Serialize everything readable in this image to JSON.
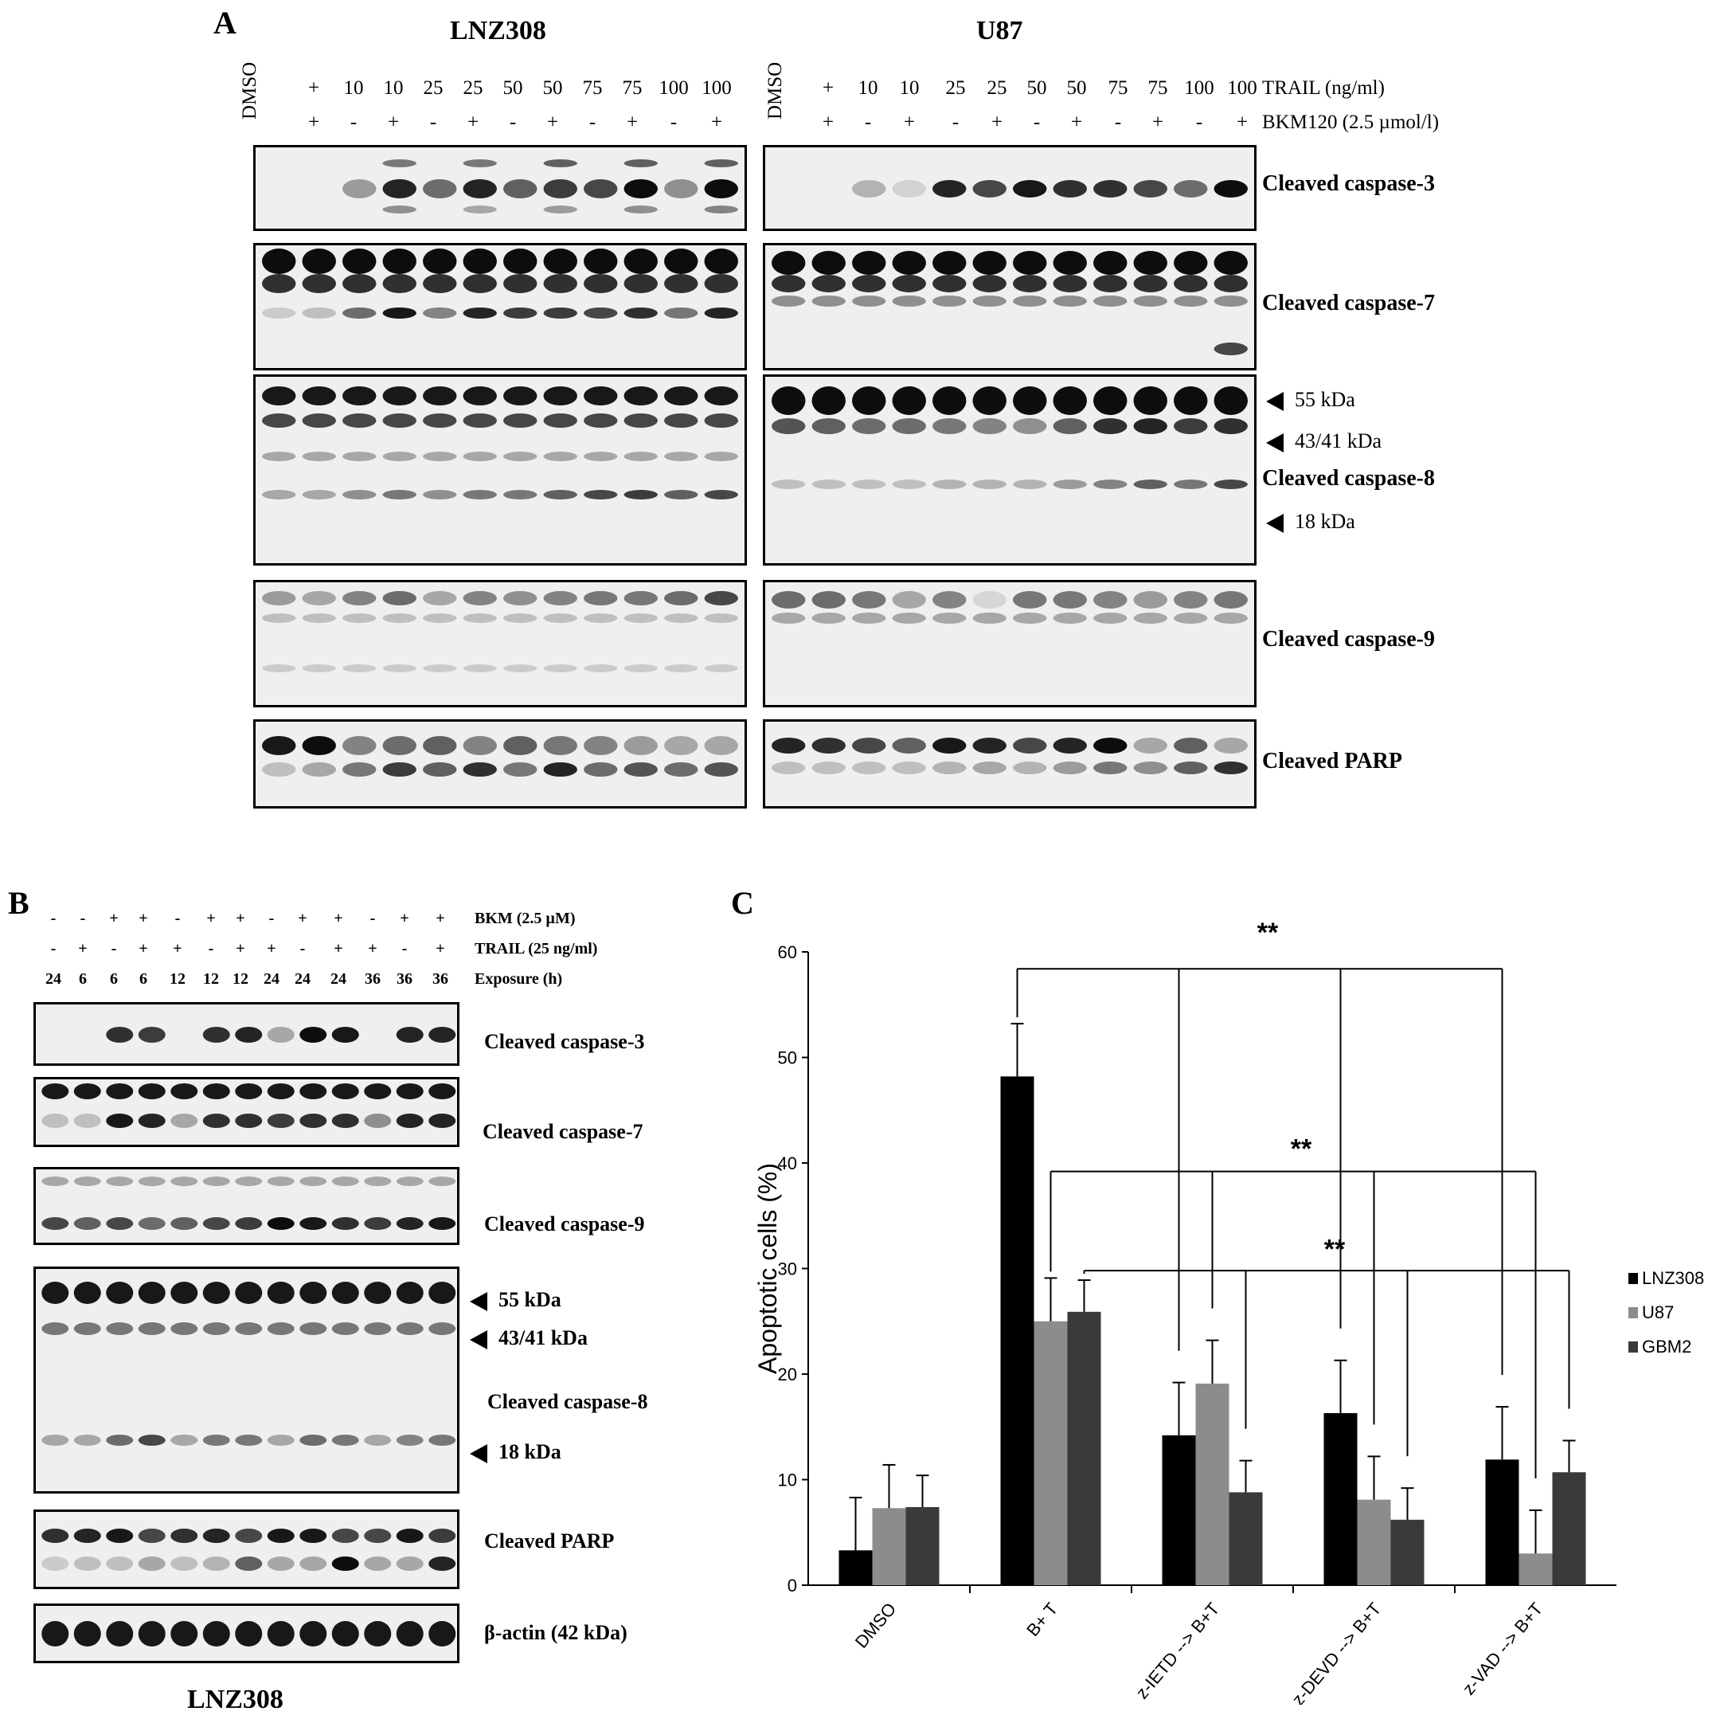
{
  "panel_a": {
    "label": "A",
    "left_title": "LNZ308",
    "right_title": "U87",
    "dmso_label": "DMSO",
    "left_trail": [
      "+",
      "10",
      "10",
      "25",
      "25",
      "50",
      "50",
      "75",
      "75",
      "100",
      "100"
    ],
    "left_bkm": [
      "+",
      "-",
      "+",
      "-",
      "+",
      "-",
      "+",
      "-",
      "+",
      "-",
      "+"
    ],
    "right_trail": [
      "+",
      "10",
      "10",
      "25",
      "25",
      "50",
      "50",
      "75",
      "75",
      "100",
      "100"
    ],
    "right_bkm": [
      "+",
      "-",
      "+",
      "-",
      "+",
      "-",
      "+",
      "-",
      "+",
      "-",
      "+"
    ],
    "trail_label": "TRAIL (ng/ml)",
    "bkm_label": "BKM120 (2.5 µmol/l)",
    "rows": [
      "Cleaved caspase-3",
      "Cleaved caspase-7",
      "Cleaved caspase-8",
      "Cleaved caspase-9",
      "Cleaved PARP"
    ],
    "kda": [
      "55 kDa",
      "43/41 kDa",
      "18 kDa"
    ]
  },
  "panel_b": {
    "label": "B",
    "bkm_signs": [
      "-",
      "-",
      "+",
      "+",
      "-",
      "+",
      "+",
      "-",
      "+",
      "+",
      "-",
      "+",
      "+"
    ],
    "trail_signs": [
      "-",
      "+",
      "-",
      "+",
      "+",
      "-",
      "+",
      "+",
      "-",
      "+",
      "+",
      "-",
      "+"
    ],
    "exposure": [
      "24",
      "6",
      "6",
      "6",
      "12",
      "12",
      "12",
      "24",
      "24",
      "24",
      "36",
      "36",
      "36"
    ],
    "bkm_label": "BKM (2.5 µM)",
    "trail_label": "TRAIL (25 ng/ml)",
    "exposure_label": "Exposure (h)",
    "rows": [
      "Cleaved caspase-3",
      "Cleaved caspase-7",
      "Cleaved caspase-9",
      "Cleaved caspase-8",
      "Cleaved PARP",
      "β-actin (42 kDa)"
    ],
    "kda": [
      "55 kDa",
      "43/41 kDa",
      "18 kDa"
    ],
    "bottom_title": "LNZ308"
  },
  "panel_c": {
    "label": "C",
    "significance": [
      "**",
      "**",
      "**"
    ]
  },
  "chart_data": {
    "type": "bar",
    "categories": [
      "DMSO",
      "B+ T",
      "z-IETD --> B+T",
      "z-DEVD --> B+T",
      "z-VAD --> B+T"
    ],
    "series": [
      {
        "name": "LNZ308",
        "values": [
          3.3,
          48.2,
          14.2,
          16.3,
          11.9
        ],
        "errors": [
          5.0,
          5.0,
          5.0,
          5.0,
          5.0
        ],
        "color": "#000000"
      },
      {
        "name": "U87",
        "values": [
          7.3,
          25.0,
          19.1,
          8.1,
          3.0
        ],
        "errors": [
          4.1,
          4.1,
          4.1,
          4.1,
          4.1
        ],
        "color": "#8c8c8c"
      },
      {
        "name": "GBM2",
        "values": [
          7.4,
          25.9,
          8.8,
          6.2,
          10.7
        ],
        "errors": [
          3.0,
          3.0,
          3.0,
          3.0,
          3.0
        ],
        "color": "#3a3a3a"
      }
    ],
    "ylabel": "Apoptotic cells (%)",
    "xlabel": "",
    "ylim": [
      0,
      60
    ],
    "yticks": [
      0,
      10,
      20,
      30,
      40,
      50,
      60
    ],
    "legend": "right"
  }
}
